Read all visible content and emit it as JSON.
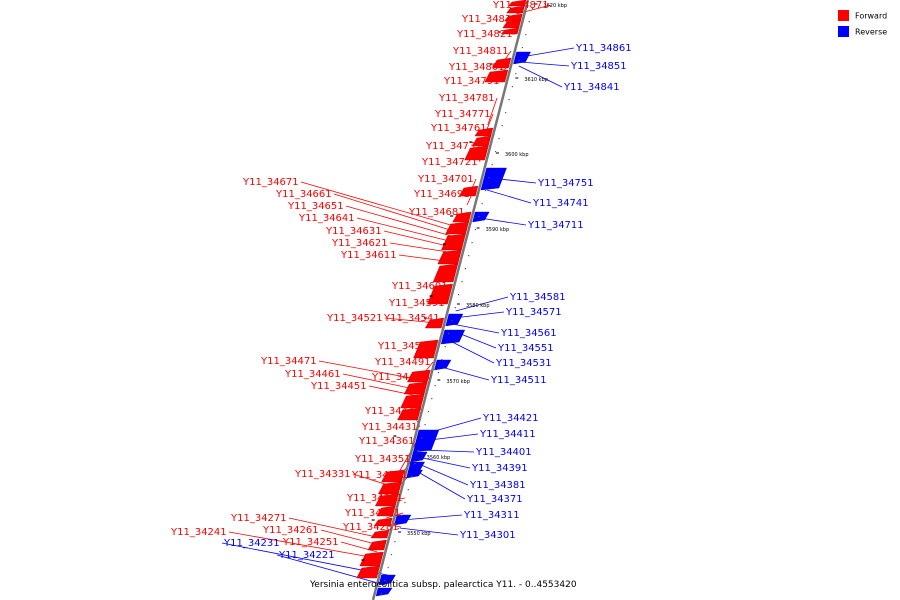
{
  "legend": {
    "items": [
      {
        "label": "Forward",
        "color": "#ff0000"
      },
      {
        "label": "Reverse",
        "color": "#0000ff"
      }
    ]
  },
  "caption": "Yersinia enterocolitica subsp. palearctica Y11. - 0..4553420",
  "colors": {
    "forward": "#ff0000",
    "reverse": "#0000ff",
    "backbone": "#777777"
  },
  "scale_labels": [
    "3620 kbp",
    "3610 kbp",
    "3600 kbp",
    "3590 kbp",
    "3580 kbp",
    "3570 kbp",
    "3560 kbp",
    "3550 kbp"
  ],
  "forward_genes": [
    "Y11_34871",
    "Y11_34831",
    "Y11_34821",
    "Y11_34811",
    "Y11_34801",
    "Y11_34791",
    "Y11_34781",
    "Y11_34771",
    "Y11_34761",
    "Y11_34731",
    "Y11_34721",
    "Y11_34701",
    "Y11_34691",
    "Y11_34681",
    "Y11_34671",
    "Y11_34661",
    "Y11_34651",
    "Y11_34641",
    "Y11_34631",
    "Y11_34621",
    "Y11_34611",
    "Y11_34601",
    "Y11_34591",
    "Y11_34521",
    "Y11_34541",
    "Y11_34501",
    "Y11_34491",
    "Y11_34471",
    "Y11_34481",
    "Y11_34461",
    "Y11_34451",
    "Y11_34441",
    "Y11_34431",
    "Y11_34361",
    "Y11_34351",
    "Y11_34331",
    "Y11_34341",
    "Y11_34321",
    "Y11_34291",
    "Y11_34281",
    "Y11_34271",
    "Y11_34261",
    "Y11_34251",
    "Y11_34241"
  ],
  "reverse_genes": [
    "Y11_34861",
    "Y11_34851",
    "Y11_34841",
    "Y11_34751",
    "Y11_34741",
    "Y11_34711",
    "Y11_34581",
    "Y11_34571",
    "Y11_34561",
    "Y11_34551",
    "Y11_34531",
    "Y11_34511",
    "Y11_34421",
    "Y11_34411",
    "Y11_34401",
    "Y11_34391",
    "Y11_34381",
    "Y11_34371",
    "Y11_34311",
    "Y11_34301",
    "Y11_34231",
    "Y11_34221"
  ]
}
